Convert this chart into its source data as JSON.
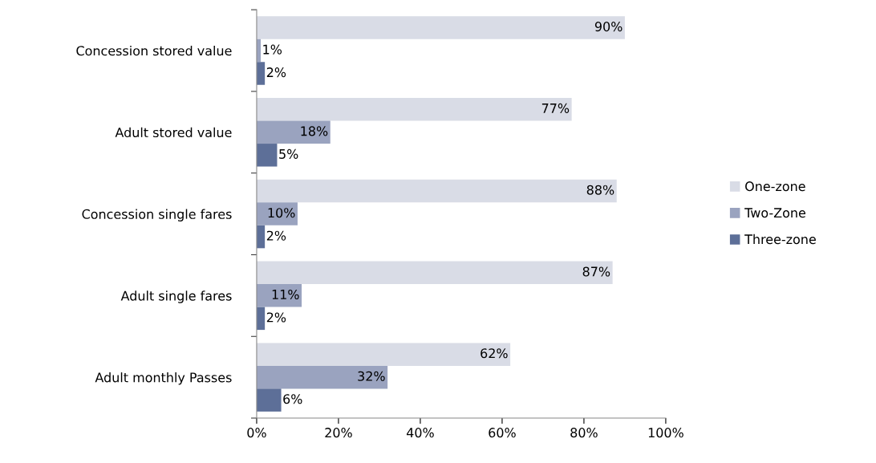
{
  "chart_data": {
    "type": "bar",
    "orientation": "horizontal",
    "categories": [
      "Concession stored value",
      "Adult stored value",
      "Concession single fares",
      "Adult single fares",
      "Adult monthly Passes"
    ],
    "series": [
      {
        "name": "One-zone",
        "color": "#d9dce6",
        "values": [
          90,
          77,
          88,
          87,
          62
        ],
        "value_labels": [
          "90%",
          "77%",
          "88%",
          "87%",
          "62%"
        ]
      },
      {
        "name": "Two-Zone",
        "color": "#9aa3bf",
        "values": [
          1,
          18,
          10,
          11,
          32
        ],
        "value_labels": [
          "1%",
          "18%",
          "10%",
          "11%",
          "32%"
        ]
      },
      {
        "name": "Three-zone",
        "color": "#5d6f98",
        "values": [
          2,
          5,
          2,
          2,
          6
        ],
        "value_labels": [
          "2%",
          "5%",
          "2%",
          "2%",
          "6%"
        ]
      }
    ],
    "xlim": [
      0,
      100
    ],
    "xticks": [
      {
        "value": 0,
        "label": "0%"
      },
      {
        "value": 20,
        "label": "20%"
      },
      {
        "value": 40,
        "label": "40%"
      },
      {
        "value": 60,
        "label": "60%"
      },
      {
        "value": 80,
        "label": "80%"
      },
      {
        "value": 100,
        "label": "100%"
      }
    ],
    "grid": false,
    "legend": "right"
  }
}
